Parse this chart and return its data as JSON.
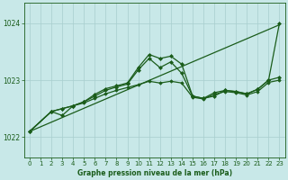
{
  "background_color": "#c8e8e8",
  "grid_color": "#a8cece",
  "line_color": "#1a5c1a",
  "xlabel": "Graphe pression niveau de la mer (hPa)",
  "ylabel_ticks": [
    1022,
    1023,
    1024
  ],
  "xlim": [
    -0.5,
    23.5
  ],
  "ylim": [
    1021.65,
    1024.35
  ],
  "xticks": [
    0,
    1,
    2,
    3,
    4,
    5,
    6,
    7,
    8,
    9,
    10,
    11,
    12,
    13,
    14,
    15,
    16,
    17,
    18,
    19,
    20,
    21,
    22,
    23
  ],
  "series": [
    {
      "x": [
        0,
        23
      ],
      "y": [
        1022.1,
        1023.97
      ],
      "color": "#1a5c1a",
      "linewidth": 0.9,
      "marker": null
    },
    {
      "x": [
        0,
        2,
        3,
        4,
        5,
        6,
        7,
        8,
        9,
        10,
        11,
        12,
        13,
        14,
        15,
        16,
        17,
        18,
        19,
        20,
        21,
        22,
        23
      ],
      "y": [
        1022.1,
        1022.45,
        1022.5,
        1022.55,
        1022.62,
        1022.72,
        1022.82,
        1022.88,
        1022.93,
        1023.18,
        1023.38,
        1023.22,
        1023.32,
        1023.12,
        1022.72,
        1022.68,
        1022.78,
        1022.82,
        1022.8,
        1022.76,
        1022.84,
        1023.0,
        1023.05
      ],
      "color": "#1a5c1a",
      "linewidth": 0.9,
      "marker": "D",
      "markersize": 2.0
    },
    {
      "x": [
        0,
        2,
        3,
        4,
        5,
        6,
        7,
        8,
        9,
        10,
        11,
        12,
        13,
        14,
        15,
        16,
        17,
        18,
        19,
        20,
        21,
        22,
        23
      ],
      "y": [
        1022.1,
        1022.45,
        1022.38,
        1022.55,
        1022.62,
        1022.75,
        1022.85,
        1022.9,
        1022.95,
        1023.22,
        1023.45,
        1023.38,
        1023.42,
        1023.28,
        1022.72,
        1022.68,
        1022.72,
        1022.82,
        1022.8,
        1022.76,
        1022.84,
        1023.0,
        1024.0
      ],
      "color": "#1a5c1a",
      "linewidth": 0.9,
      "marker": "D",
      "markersize": 2.0
    },
    {
      "x": [
        0,
        2,
        3,
        4,
        5,
        6,
        7,
        8,
        9,
        10,
        11,
        12,
        13,
        14,
        15,
        16,
        17,
        18,
        19,
        20,
        21,
        22,
        23
      ],
      "y": [
        1022.1,
        1022.45,
        1022.5,
        1022.55,
        1022.6,
        1022.68,
        1022.76,
        1022.82,
        1022.87,
        1022.92,
        1022.98,
        1022.95,
        1022.98,
        1022.95,
        1022.7,
        1022.67,
        1022.75,
        1022.8,
        1022.78,
        1022.74,
        1022.8,
        1022.96,
        1023.0
      ],
      "color": "#1a5c1a",
      "linewidth": 0.9,
      "marker": "D",
      "markersize": 1.8
    }
  ]
}
